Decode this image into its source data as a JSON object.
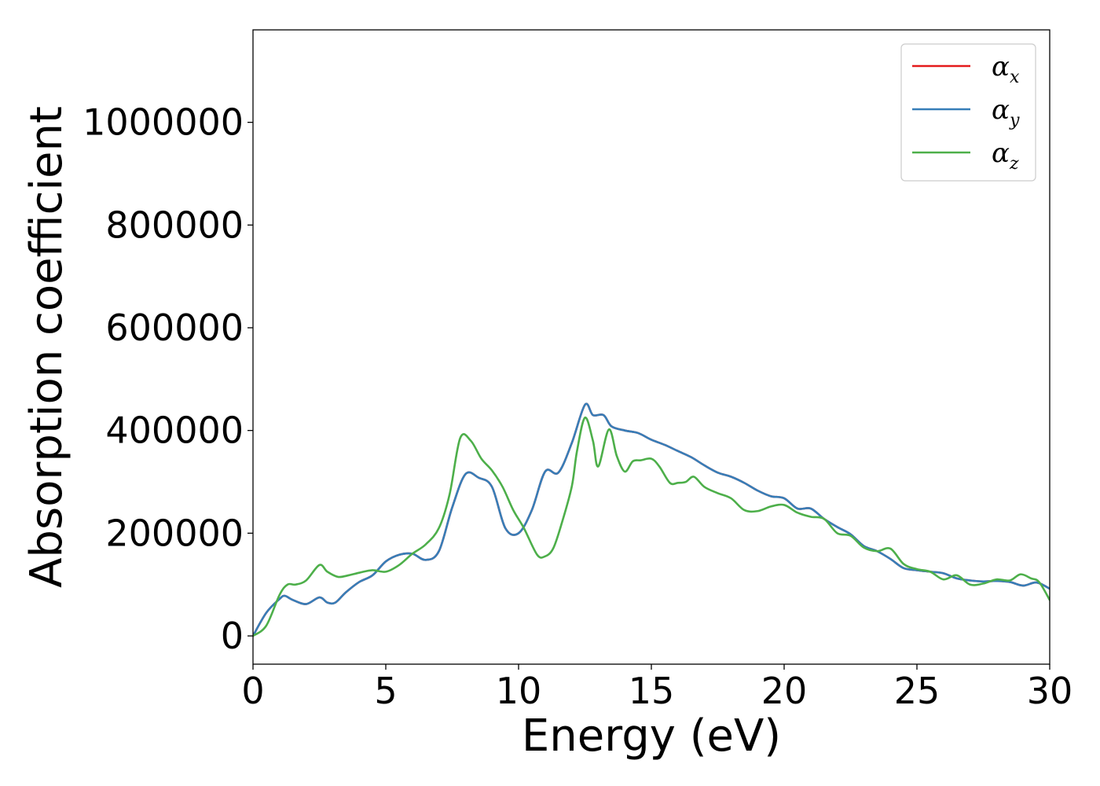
{
  "chart_data": {
    "type": "line",
    "title": "",
    "xlabel": "Energy (eV)",
    "ylabel": "Absorption coefficient",
    "xlim": [
      0,
      30
    ],
    "ylim": [
      -55000,
      1180000
    ],
    "x_ticks": [
      0,
      5,
      10,
      15,
      20,
      25,
      30
    ],
    "y_ticks": [
      0,
      200000,
      400000,
      600000,
      800000,
      1000000
    ],
    "grid": false,
    "legend_position": "top-right",
    "series": [
      {
        "name": "α_x",
        "legend_symbol": "α",
        "legend_subscript": "x",
        "color": "#e41a1c",
        "x": [
          0,
          0.5,
          1.0,
          1.2,
          1.5,
          2.0,
          2.5,
          2.8,
          3.1,
          3.5,
          4.0,
          4.5,
          5.0,
          5.5,
          6.0,
          6.5,
          7.0,
          7.5,
          8.0,
          8.5,
          9.0,
          9.5,
          10.0,
          10.5,
          11.0,
          11.5,
          12.0,
          12.5,
          12.8,
          13.2,
          13.5,
          14.0,
          14.5,
          15.0,
          15.5,
          16.0,
          16.5,
          17.0,
          17.5,
          18.0,
          18.5,
          19.0,
          19.5,
          20.0,
          20.5,
          21.0,
          21.5,
          22.0,
          22.5,
          23.0,
          23.5,
          24.0,
          24.5,
          25.0,
          25.5,
          26.0,
          26.5,
          27.0,
          27.5,
          28.0,
          28.5,
          29.0,
          29.5,
          30.0
        ],
        "values": [
          0,
          45000,
          72000,
          78000,
          70000,
          62000,
          75000,
          65000,
          65000,
          85000,
          105000,
          118000,
          145000,
          158000,
          160000,
          148000,
          165000,
          250000,
          315000,
          308000,
          290000,
          210000,
          200000,
          245000,
          320000,
          318000,
          375000,
          450000,
          430000,
          430000,
          408000,
          400000,
          395000,
          382000,
          372000,
          360000,
          348000,
          332000,
          318000,
          310000,
          298000,
          283000,
          272000,
          268000,
          248000,
          248000,
          228000,
          212000,
          198000,
          175000,
          165000,
          150000,
          132000,
          128000,
          125000,
          122000,
          112000,
          108000,
          106000,
          107000,
          105000,
          98000,
          104000,
          92000
        ]
      },
      {
        "name": "α_y",
        "legend_symbol": "α",
        "legend_subscript": "y",
        "color": "#377eb8",
        "x": [
          0,
          0.5,
          1.0,
          1.2,
          1.5,
          2.0,
          2.5,
          2.8,
          3.1,
          3.5,
          4.0,
          4.5,
          5.0,
          5.5,
          6.0,
          6.5,
          7.0,
          7.5,
          8.0,
          8.5,
          9.0,
          9.5,
          10.0,
          10.5,
          11.0,
          11.5,
          12.0,
          12.5,
          12.8,
          13.2,
          13.5,
          14.0,
          14.5,
          15.0,
          15.5,
          16.0,
          16.5,
          17.0,
          17.5,
          18.0,
          18.5,
          19.0,
          19.5,
          20.0,
          20.5,
          21.0,
          21.5,
          22.0,
          22.5,
          23.0,
          23.5,
          24.0,
          24.5,
          25.0,
          25.5,
          26.0,
          26.5,
          27.0,
          27.5,
          28.0,
          28.5,
          29.0,
          29.5,
          30.0
        ],
        "values": [
          0,
          45000,
          72000,
          78000,
          70000,
          62000,
          75000,
          65000,
          65000,
          85000,
          105000,
          118000,
          145000,
          158000,
          160000,
          148000,
          165000,
          250000,
          315000,
          308000,
          290000,
          210000,
          200000,
          245000,
          320000,
          318000,
          375000,
          450000,
          430000,
          430000,
          408000,
          400000,
          395000,
          382000,
          372000,
          360000,
          348000,
          332000,
          318000,
          310000,
          298000,
          283000,
          272000,
          268000,
          248000,
          248000,
          228000,
          212000,
          198000,
          175000,
          165000,
          150000,
          132000,
          128000,
          125000,
          122000,
          112000,
          108000,
          106000,
          107000,
          105000,
          98000,
          104000,
          92000
        ]
      },
      {
        "name": "α_z",
        "legend_symbol": "α",
        "legend_subscript": "z",
        "color": "#4daf4a",
        "x": [
          0,
          0.5,
          1.0,
          1.3,
          1.6,
          2.0,
          2.5,
          2.8,
          3.2,
          3.6,
          4.0,
          4.5,
          5.0,
          5.5,
          6.0,
          6.5,
          7.0,
          7.4,
          7.8,
          8.2,
          8.6,
          9.0,
          9.4,
          9.8,
          10.2,
          10.7,
          11.0,
          11.3,
          11.6,
          12.0,
          12.2,
          12.5,
          12.8,
          13.0,
          13.4,
          13.7,
          14.0,
          14.3,
          14.6,
          15.0,
          15.3,
          15.7,
          16.0,
          16.3,
          16.6,
          17.0,
          17.5,
          18.0,
          18.5,
          19.0,
          19.5,
          20.0,
          20.5,
          21.0,
          21.5,
          22.0,
          22.5,
          23.0,
          23.5,
          24.0,
          24.5,
          25.0,
          25.5,
          26.0,
          26.5,
          27.0,
          27.5,
          28.0,
          28.5,
          28.9,
          29.3,
          29.6,
          30.0
        ],
        "values": [
          0,
          20000,
          80000,
          100000,
          100000,
          108000,
          138000,
          125000,
          115000,
          118000,
          123000,
          128000,
          125000,
          138000,
          160000,
          178000,
          210000,
          275000,
          385000,
          380000,
          345000,
          322000,
          290000,
          245000,
          210000,
          158000,
          155000,
          170000,
          215000,
          290000,
          360000,
          425000,
          380000,
          330000,
          402000,
          350000,
          320000,
          340000,
          342000,
          345000,
          330000,
          298000,
          298000,
          300000,
          310000,
          290000,
          278000,
          268000,
          245000,
          243000,
          252000,
          255000,
          240000,
          232000,
          228000,
          200000,
          195000,
          172000,
          165000,
          170000,
          140000,
          130000,
          125000,
          110000,
          118000,
          100000,
          102000,
          110000,
          108000,
          120000,
          112000,
          105000,
          70000
        ]
      }
    ]
  }
}
